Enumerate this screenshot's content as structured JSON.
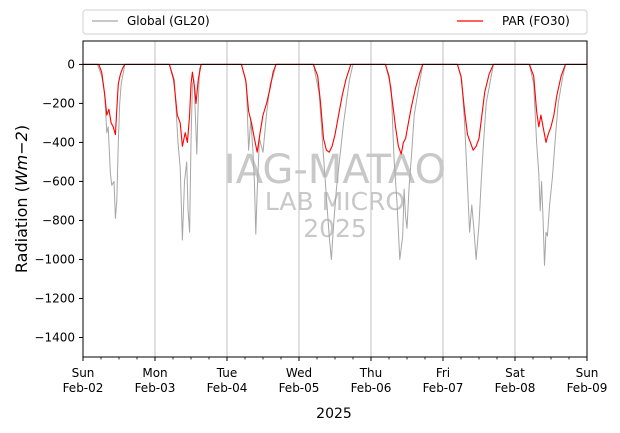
{
  "chart_data": {
    "type": "line",
    "title": "",
    "xlabel": "2025",
    "ylabel_main": "Radiation (",
    "ylabel_unit": "Wm−2",
    "ylabel_close": ")",
    "ylim": [
      -1500,
      120
    ],
    "yticks": [
      0,
      -200,
      -400,
      -600,
      -800,
      -1000,
      -1200,
      -1400
    ],
    "xlim": [
      0,
      7
    ],
    "xticks": [
      {
        "x": 0,
        "day": "Sun",
        "date": "Feb-02"
      },
      {
        "x": 1,
        "day": "Mon",
        "date": "Feb-03"
      },
      {
        "x": 2,
        "day": "Tue",
        "date": "Feb-04"
      },
      {
        "x": 3,
        "day": "Wed",
        "date": "Feb-05"
      },
      {
        "x": 4,
        "day": "Thu",
        "date": "Feb-06"
      },
      {
        "x": 5,
        "day": "Fri",
        "date": "Feb-07"
      },
      {
        "x": 6,
        "day": "Sat",
        "date": "Feb-08"
      },
      {
        "x": 7,
        "day": "Sun",
        "date": "Feb-09"
      }
    ],
    "grid": "vertical",
    "legend_position": "top",
    "watermark": [
      "IAG-MATAO",
      "LAB MICRO",
      "2025"
    ],
    "series": [
      {
        "name": "Global (GL20)",
        "color": "#a6a6a6",
        "points": [
          [
            0,
            0
          ],
          [
            0.2,
            0
          ],
          [
            0.26,
            -60
          ],
          [
            0.3,
            -150
          ],
          [
            0.33,
            -350
          ],
          [
            0.35,
            -320
          ],
          [
            0.38,
            -560
          ],
          [
            0.4,
            -620
          ],
          [
            0.43,
            -600
          ],
          [
            0.45,
            -790
          ],
          [
            0.47,
            -700
          ],
          [
            0.49,
            -400
          ],
          [
            0.51,
            -200
          ],
          [
            0.53,
            -100
          ],
          [
            0.58,
            0
          ],
          [
            1.0,
            0
          ],
          [
            1.2,
            0
          ],
          [
            1.27,
            -80
          ],
          [
            1.32,
            -400
          ],
          [
            1.35,
            -530
          ],
          [
            1.38,
            -900
          ],
          [
            1.41,
            -600
          ],
          [
            1.44,
            -500
          ],
          [
            1.46,
            -750
          ],
          [
            1.48,
            -860
          ],
          [
            1.5,
            -400
          ],
          [
            1.52,
            -100
          ],
          [
            1.54,
            -80
          ],
          [
            1.56,
            -250
          ],
          [
            1.58,
            -460
          ],
          [
            1.6,
            -200
          ],
          [
            1.62,
            -20
          ],
          [
            1.65,
            0
          ],
          [
            2.2,
            0
          ],
          [
            2.27,
            -100
          ],
          [
            2.3,
            -440
          ],
          [
            2.33,
            -280
          ],
          [
            2.36,
            -440
          ],
          [
            2.38,
            -600
          ],
          [
            2.4,
            -870
          ],
          [
            2.42,
            -650
          ],
          [
            2.45,
            -380
          ],
          [
            2.5,
            -450
          ],
          [
            2.55,
            -250
          ],
          [
            2.6,
            -100
          ],
          [
            2.64,
            -60
          ],
          [
            2.68,
            0
          ],
          [
            3.2,
            0
          ],
          [
            3.28,
            -150
          ],
          [
            3.33,
            -420
          ],
          [
            3.38,
            -680
          ],
          [
            3.42,
            -880
          ],
          [
            3.45,
            -1000
          ],
          [
            3.48,
            -820
          ],
          [
            3.52,
            -640
          ],
          [
            3.56,
            -500
          ],
          [
            3.62,
            -300
          ],
          [
            3.7,
            -80
          ],
          [
            3.75,
            0
          ],
          [
            4.2,
            0
          ],
          [
            4.28,
            -120
          ],
          [
            4.32,
            -480
          ],
          [
            4.36,
            -700
          ],
          [
            4.4,
            -1000
          ],
          [
            4.44,
            -880
          ],
          [
            4.46,
            -640
          ],
          [
            4.48,
            -780
          ],
          [
            4.5,
            -840
          ],
          [
            4.53,
            -620
          ],
          [
            4.56,
            -480
          ],
          [
            4.6,
            -260
          ],
          [
            4.68,
            -80
          ],
          [
            4.72,
            0
          ],
          [
            5.2,
            0
          ],
          [
            5.26,
            -80
          ],
          [
            5.3,
            -300
          ],
          [
            5.34,
            -620
          ],
          [
            5.37,
            -860
          ],
          [
            5.4,
            -720
          ],
          [
            5.43,
            -850
          ],
          [
            5.46,
            -1000
          ],
          [
            5.5,
            -820
          ],
          [
            5.53,
            -600
          ],
          [
            5.56,
            -420
          ],
          [
            5.6,
            -200
          ],
          [
            5.66,
            -80
          ],
          [
            5.7,
            0
          ],
          [
            6.2,
            0
          ],
          [
            6.26,
            -100
          ],
          [
            6.3,
            -400
          ],
          [
            6.33,
            -560
          ],
          [
            6.35,
            -750
          ],
          [
            6.37,
            -600
          ],
          [
            6.39,
            -800
          ],
          [
            6.41,
            -1030
          ],
          [
            6.43,
            -860
          ],
          [
            6.45,
            -880
          ],
          [
            6.48,
            -720
          ],
          [
            6.52,
            -580
          ],
          [
            6.56,
            -380
          ],
          [
            6.6,
            -200
          ],
          [
            6.66,
            -70
          ],
          [
            6.7,
            0
          ],
          [
            7.0,
            0
          ]
        ]
      },
      {
        "name": "PAR (FO30)",
        "color": "#ff0000",
        "points": [
          [
            0,
            0
          ],
          [
            0.22,
            0
          ],
          [
            0.26,
            -40
          ],
          [
            0.3,
            -150
          ],
          [
            0.33,
            -260
          ],
          [
            0.36,
            -230
          ],
          [
            0.39,
            -300
          ],
          [
            0.42,
            -320
          ],
          [
            0.45,
            -360
          ],
          [
            0.47,
            -230
          ],
          [
            0.49,
            -100
          ],
          [
            0.52,
            -50
          ],
          [
            0.55,
            -20
          ],
          [
            0.58,
            0
          ],
          [
            1.0,
            0
          ],
          [
            1.2,
            0
          ],
          [
            1.26,
            -80
          ],
          [
            1.31,
            -260
          ],
          [
            1.35,
            -300
          ],
          [
            1.38,
            -420
          ],
          [
            1.42,
            -350
          ],
          [
            1.45,
            -400
          ],
          [
            1.48,
            -260
          ],
          [
            1.5,
            -100
          ],
          [
            1.52,
            -40
          ],
          [
            1.55,
            -120
          ],
          [
            1.57,
            -200
          ],
          [
            1.6,
            -80
          ],
          [
            1.64,
            0
          ],
          [
            2.2,
            0
          ],
          [
            2.26,
            -80
          ],
          [
            2.3,
            -240
          ],
          [
            2.34,
            -300
          ],
          [
            2.38,
            -380
          ],
          [
            2.42,
            -450
          ],
          [
            2.46,
            -350
          ],
          [
            2.5,
            -260
          ],
          [
            2.55,
            -200
          ],
          [
            2.6,
            -120
          ],
          [
            2.64,
            -40
          ],
          [
            2.68,
            0
          ],
          [
            3.2,
            0
          ],
          [
            3.26,
            -60
          ],
          [
            3.3,
            -200
          ],
          [
            3.34,
            -380
          ],
          [
            3.38,
            -440
          ],
          [
            3.42,
            -450
          ],
          [
            3.46,
            -420
          ],
          [
            3.5,
            -360
          ],
          [
            3.55,
            -260
          ],
          [
            3.6,
            -160
          ],
          [
            3.65,
            -80
          ],
          [
            3.72,
            0
          ],
          [
            4.2,
            0
          ],
          [
            4.25,
            -60
          ],
          [
            4.3,
            -200
          ],
          [
            4.34,
            -320
          ],
          [
            4.38,
            -420
          ],
          [
            4.42,
            -460
          ],
          [
            4.45,
            -400
          ],
          [
            4.48,
            -380
          ],
          [
            4.52,
            -300
          ],
          [
            4.56,
            -220
          ],
          [
            4.62,
            -120
          ],
          [
            4.68,
            -40
          ],
          [
            4.72,
            0
          ],
          [
            5.2,
            0
          ],
          [
            5.25,
            -60
          ],
          [
            5.3,
            -240
          ],
          [
            5.34,
            -360
          ],
          [
            5.38,
            -400
          ],
          [
            5.42,
            -440
          ],
          [
            5.46,
            -420
          ],
          [
            5.5,
            -380
          ],
          [
            5.54,
            -260
          ],
          [
            5.58,
            -140
          ],
          [
            5.64,
            -50
          ],
          [
            5.7,
            0
          ],
          [
            6.2,
            0
          ],
          [
            6.26,
            -60
          ],
          [
            6.3,
            -240
          ],
          [
            6.33,
            -320
          ],
          [
            6.36,
            -260
          ],
          [
            6.4,
            -340
          ],
          [
            6.43,
            -400
          ],
          [
            6.46,
            -360
          ],
          [
            6.5,
            -320
          ],
          [
            6.54,
            -260
          ],
          [
            6.58,
            -160
          ],
          [
            6.64,
            -60
          ],
          [
            6.7,
            0
          ],
          [
            7.0,
            0
          ]
        ]
      }
    ]
  }
}
